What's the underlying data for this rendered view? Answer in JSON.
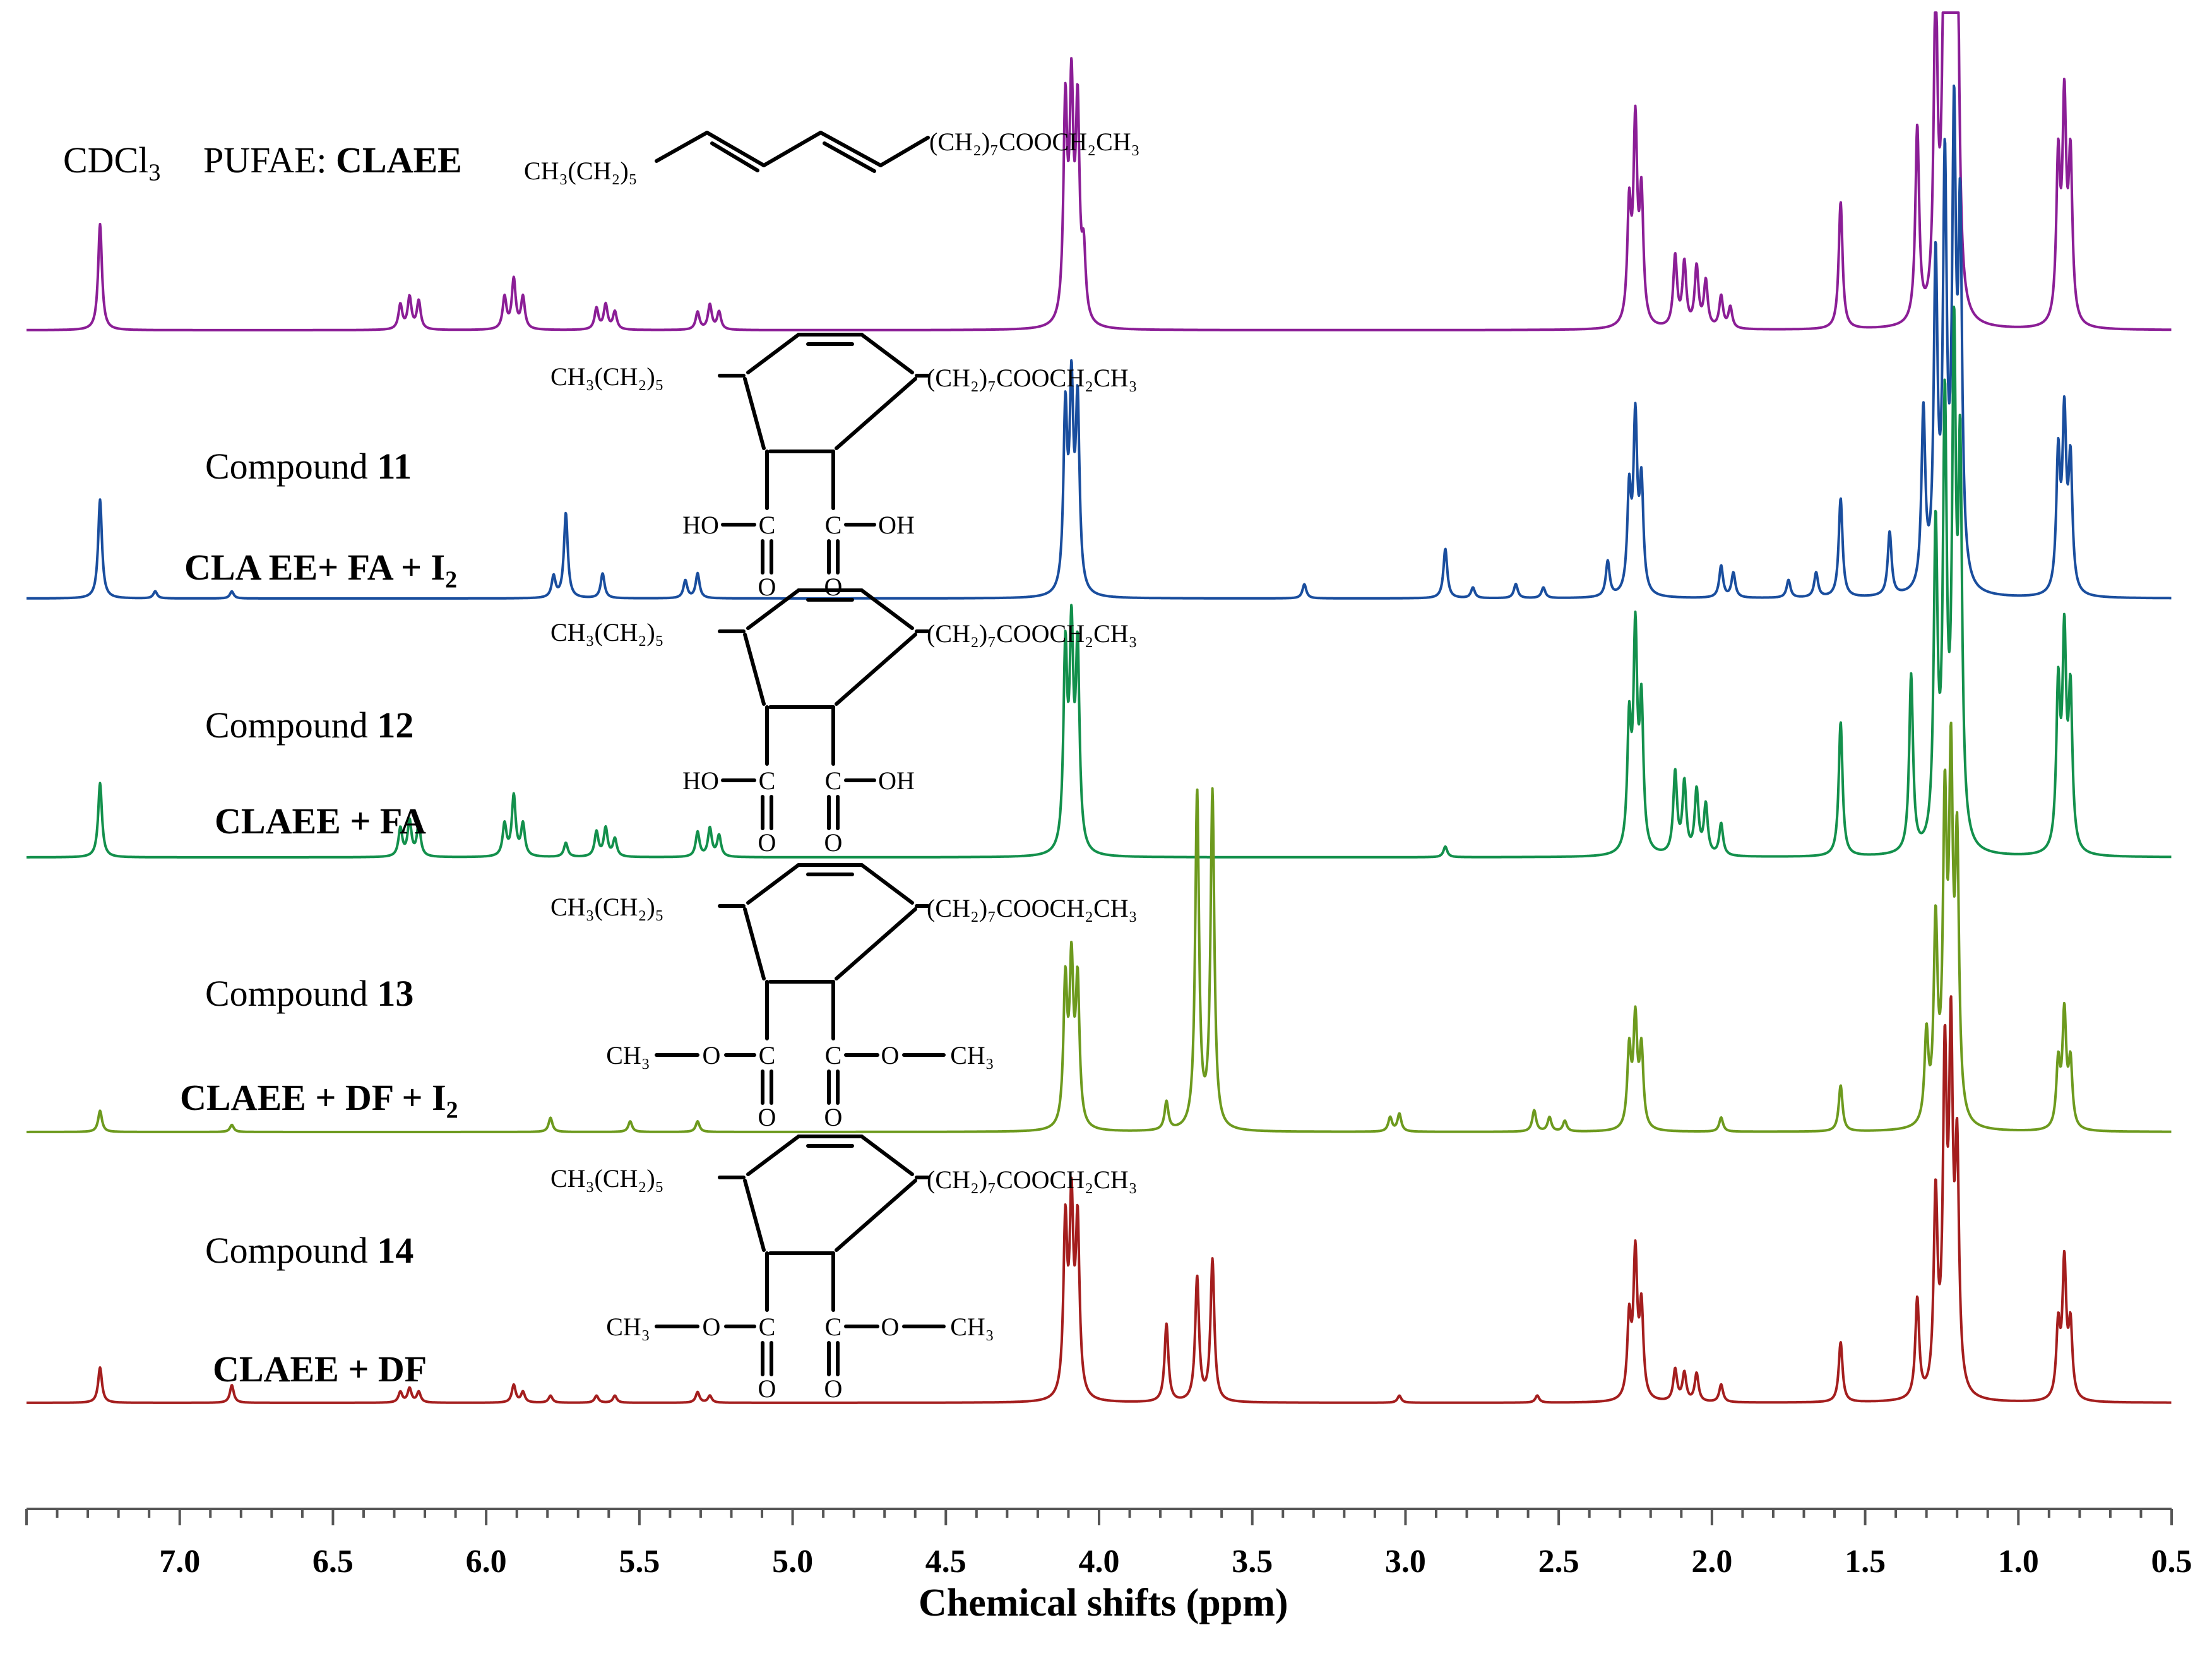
{
  "chart_data": {
    "type": "line",
    "title": "",
    "xlabel": "Chemical shifts (ppm)",
    "ylabel": "",
    "xlim": [
      7.5,
      0.5
    ],
    "x_ticks": [
      "7.0",
      "6.5",
      "6.0",
      "5.5",
      "5.0",
      "4.5",
      "4.0",
      "3.5",
      "3.0",
      "2.5",
      "2.0",
      "1.5",
      "1.0",
      "0.5"
    ],
    "x_tick_values": [
      7.0,
      6.5,
      6.0,
      5.5,
      5.0,
      4.5,
      4.0,
      3.5,
      3.0,
      2.5,
      2.0,
      1.5,
      1.0,
      0.5
    ],
    "solvent_label": "CDCl",
    "solvent_subscript": "3",
    "top_label_prefix": "PUFAE: ",
    "top_label_name": "CLAEE",
    "compound_word": "Compound",
    "series": [
      {
        "name": "CLAEE",
        "color": "#8B1E96",
        "reaction_label": "",
        "reaction_subscript": "",
        "compound_number": "",
        "peaks": [
          [
            7.26,
            0.3
          ],
          [
            6.28,
            0.07
          ],
          [
            6.25,
            0.09
          ],
          [
            6.22,
            0.08
          ],
          [
            5.94,
            0.09
          ],
          [
            5.91,
            0.14
          ],
          [
            5.88,
            0.09
          ],
          [
            5.64,
            0.06
          ],
          [
            5.61,
            0.07
          ],
          [
            5.58,
            0.05
          ],
          [
            5.31,
            0.05
          ],
          [
            5.27,
            0.07
          ],
          [
            5.24,
            0.05
          ],
          [
            4.11,
            0.6
          ],
          [
            4.09,
            0.62
          ],
          [
            4.07,
            0.58
          ],
          [
            4.05,
            0.18
          ],
          [
            2.27,
            0.32
          ],
          [
            2.25,
            0.55
          ],
          [
            2.23,
            0.35
          ],
          [
            2.12,
            0.2
          ],
          [
            2.09,
            0.18
          ],
          [
            2.05,
            0.17
          ],
          [
            2.02,
            0.13
          ],
          [
            1.97,
            0.09
          ],
          [
            1.94,
            0.06
          ],
          [
            1.58,
            0.36
          ],
          [
            1.33,
            0.55
          ],
          [
            1.27,
            0.9
          ],
          [
            1.24,
            1.3
          ],
          [
            1.22,
            1.4
          ],
          [
            1.2,
            1.1
          ],
          [
            0.87,
            0.45
          ],
          [
            0.85,
            0.6
          ],
          [
            0.83,
            0.45
          ]
        ]
      },
      {
        "name": "Compound 11",
        "color": "#1A4E9E",
        "reaction_label": "CLA EE+ FA + I",
        "reaction_subscript": "2",
        "compound_number": "11",
        "peaks": [
          [
            7.26,
            0.28
          ],
          [
            7.08,
            0.02
          ],
          [
            6.83,
            0.02
          ],
          [
            5.78,
            0.06
          ],
          [
            5.74,
            0.24
          ],
          [
            5.62,
            0.07
          ],
          [
            5.35,
            0.05
          ],
          [
            5.31,
            0.07
          ],
          [
            4.11,
            0.5
          ],
          [
            4.09,
            0.55
          ],
          [
            4.07,
            0.52
          ],
          [
            3.33,
            0.04
          ],
          [
            2.87,
            0.14
          ],
          [
            2.78,
            0.03
          ],
          [
            2.64,
            0.04
          ],
          [
            2.55,
            0.03
          ],
          [
            2.34,
            0.1
          ],
          [
            2.27,
            0.28
          ],
          [
            2.25,
            0.48
          ],
          [
            2.23,
            0.3
          ],
          [
            1.97,
            0.09
          ],
          [
            1.93,
            0.07
          ],
          [
            1.75,
            0.05
          ],
          [
            1.66,
            0.07
          ],
          [
            1.58,
            0.28
          ],
          [
            1.42,
            0.18
          ],
          [
            1.31,
            0.5
          ],
          [
            1.27,
            0.9
          ],
          [
            1.24,
            1.15
          ],
          [
            1.21,
            1.25
          ],
          [
            1.19,
            1.0
          ],
          [
            0.87,
            0.38
          ],
          [
            0.85,
            0.48
          ],
          [
            0.83,
            0.36
          ]
        ]
      },
      {
        "name": "Compound 12",
        "color": "#13904C",
        "reaction_label": "CLAEE + FA",
        "reaction_subscript": "",
        "compound_number": "12",
        "peaks": [
          [
            7.26,
            0.21
          ],
          [
            6.28,
            0.08
          ],
          [
            6.25,
            0.1
          ],
          [
            6.22,
            0.09
          ],
          [
            5.94,
            0.09
          ],
          [
            5.91,
            0.17
          ],
          [
            5.88,
            0.09
          ],
          [
            5.74,
            0.04
          ],
          [
            5.64,
            0.07
          ],
          [
            5.61,
            0.08
          ],
          [
            5.58,
            0.05
          ],
          [
            5.31,
            0.07
          ],
          [
            5.27,
            0.08
          ],
          [
            5.24,
            0.06
          ],
          [
            4.11,
            0.55
          ],
          [
            4.09,
            0.58
          ],
          [
            4.07,
            0.55
          ],
          [
            2.87,
            0.03
          ],
          [
            2.27,
            0.35
          ],
          [
            2.25,
            0.6
          ],
          [
            2.23,
            0.4
          ],
          [
            2.12,
            0.23
          ],
          [
            2.09,
            0.2
          ],
          [
            2.05,
            0.18
          ],
          [
            2.02,
            0.14
          ],
          [
            1.97,
            0.09
          ],
          [
            1.58,
            0.38
          ],
          [
            1.35,
            0.5
          ],
          [
            1.27,
            0.88
          ],
          [
            1.24,
            1.2
          ],
          [
            1.21,
            1.35
          ],
          [
            1.19,
            1.05
          ],
          [
            0.87,
            0.45
          ],
          [
            0.85,
            0.58
          ],
          [
            0.83,
            0.43
          ]
        ]
      },
      {
        "name": "Compound 13",
        "color": "#6D9A1E",
        "reaction_label": "CLAEE + DF + I",
        "reaction_subscript": "2",
        "compound_number": "13",
        "peaks": [
          [
            7.26,
            0.06
          ],
          [
            6.83,
            0.02
          ],
          [
            5.79,
            0.04
          ],
          [
            5.53,
            0.03
          ],
          [
            5.31,
            0.03
          ],
          [
            4.11,
            0.4
          ],
          [
            4.09,
            0.44
          ],
          [
            4.07,
            0.4
          ],
          [
            3.78,
            0.08
          ],
          [
            3.68,
            0.95
          ],
          [
            3.63,
            0.95
          ],
          [
            3.05,
            0.04
          ],
          [
            3.02,
            0.05
          ],
          [
            2.58,
            0.06
          ],
          [
            2.53,
            0.04
          ],
          [
            2.48,
            0.03
          ],
          [
            2.27,
            0.22
          ],
          [
            2.25,
            0.3
          ],
          [
            2.23,
            0.22
          ],
          [
            1.97,
            0.04
          ],
          [
            1.58,
            0.13
          ],
          [
            1.3,
            0.25
          ],
          [
            1.27,
            0.55
          ],
          [
            1.24,
            0.85
          ],
          [
            1.22,
            0.95
          ],
          [
            1.2,
            0.75
          ],
          [
            0.87,
            0.18
          ],
          [
            0.85,
            0.32
          ],
          [
            0.83,
            0.18
          ]
        ]
      },
      {
        "name": "Compound 14",
        "color": "#A41E1E",
        "reaction_label": "CLAEE + DF",
        "reaction_subscript": "",
        "compound_number": "14",
        "peaks": [
          [
            7.26,
            0.1
          ],
          [
            6.83,
            0.05
          ],
          [
            6.28,
            0.03
          ],
          [
            6.25,
            0.04
          ],
          [
            6.22,
            0.03
          ],
          [
            5.91,
            0.05
          ],
          [
            5.88,
            0.03
          ],
          [
            5.79,
            0.02
          ],
          [
            5.64,
            0.02
          ],
          [
            5.58,
            0.02
          ],
          [
            5.31,
            0.03
          ],
          [
            5.27,
            0.02
          ],
          [
            4.11,
            0.48
          ],
          [
            4.09,
            0.52
          ],
          [
            4.07,
            0.48
          ],
          [
            3.78,
            0.22
          ],
          [
            3.68,
            0.35
          ],
          [
            3.63,
            0.4
          ],
          [
            3.02,
            0.02
          ],
          [
            2.57,
            0.02
          ],
          [
            2.27,
            0.22
          ],
          [
            2.25,
            0.4
          ],
          [
            2.23,
            0.25
          ],
          [
            2.12,
            0.09
          ],
          [
            2.09,
            0.08
          ],
          [
            2.05,
            0.08
          ],
          [
            1.97,
            0.05
          ],
          [
            1.58,
            0.17
          ],
          [
            1.33,
            0.28
          ],
          [
            1.27,
            0.55
          ],
          [
            1.24,
            0.9
          ],
          [
            1.22,
            0.95
          ],
          [
            1.2,
            0.65
          ],
          [
            0.87,
            0.2
          ],
          [
            0.85,
            0.38
          ],
          [
            0.83,
            0.2
          ]
        ]
      }
    ],
    "structures": {
      "top_left_group": "CH₃(CH₂)₅",
      "top_right_group": "(CH₂)₇COOCH₂CH₃",
      "left_group": "CH₃(CH₂)₅",
      "right_group": "(CH₂)₇COOCH₂CH₃",
      "acid_left": "HO",
      "acid_right": "OH",
      "ester_left": "CH₃",
      "ester_right": "CH₃",
      "carbon": "C",
      "oxygen": "O"
    }
  }
}
